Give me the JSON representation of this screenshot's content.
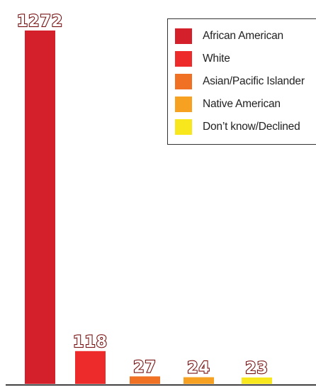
{
  "chart_data": {
    "type": "bar",
    "categories": [
      "African American",
      "White",
      "Asian/Pacific Islander",
      "Native American",
      "Don’t know/Declined"
    ],
    "values": [
      1272,
      118,
      27,
      24,
      23
    ],
    "value_labels": [
      "1272",
      "118",
      "27",
      "24",
      "23"
    ],
    "colors": [
      "#d3202a",
      "#ee2b2b",
      "#f07124",
      "#f6a121",
      "#f8e71c"
    ],
    "ylim": [
      0,
      1272
    ],
    "grid": false,
    "legend": "top-right"
  }
}
